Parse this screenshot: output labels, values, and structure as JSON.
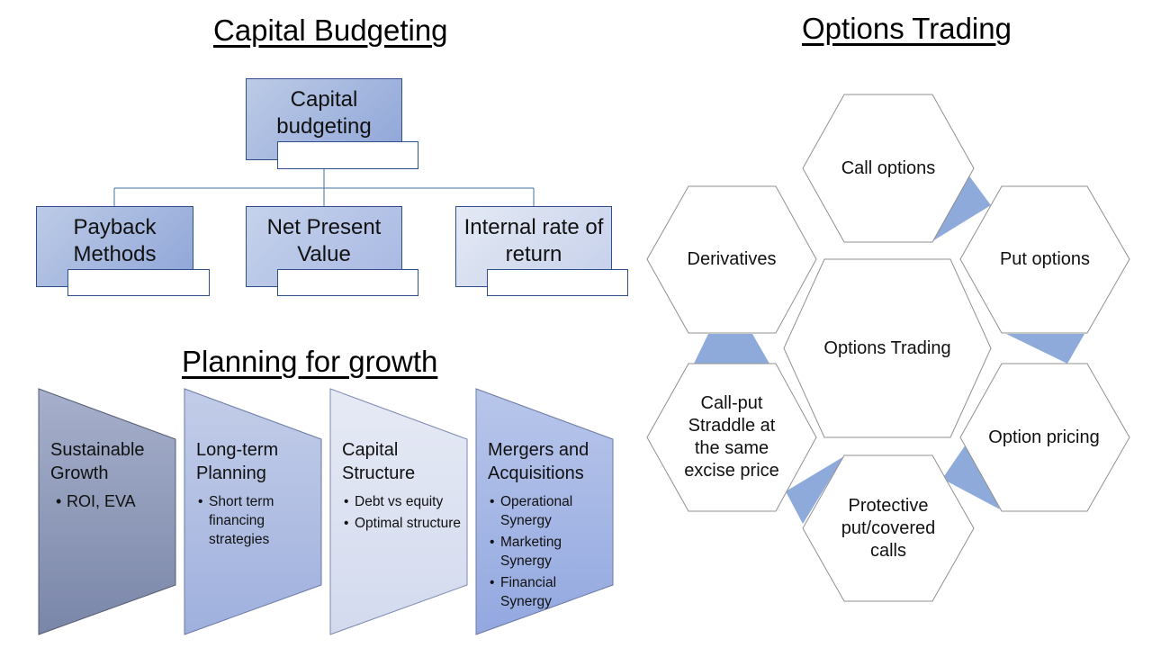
{
  "capital_budgeting": {
    "heading": "Capital Budgeting",
    "root": "Capital budgeting",
    "children": [
      "Payback Methods",
      "Net Present Value",
      "Internal rate of return"
    ]
  },
  "planning": {
    "heading": "Planning for growth",
    "stages": [
      {
        "title": "Sustainable Growth",
        "items": [
          "ROI, EVA"
        ]
      },
      {
        "title": "Long-term Planning",
        "items": [
          "Short term financing strategies"
        ]
      },
      {
        "title": "Capital Structure",
        "items": [
          "Debt vs equity",
          "Optimal structure"
        ]
      },
      {
        "title": "Mergers and Acquisitions",
        "items": [
          "Operational Synergy",
          "Marketing Synergy",
          "Financial Synergy"
        ]
      }
    ]
  },
  "options": {
    "heading": "Options Trading",
    "center": "Options Trading",
    "ring": [
      "Call options",
      "Put options",
      "Option pricing",
      "Protective put/covered calls",
      "Call-put Straddle at the same excise price",
      "Derivatives"
    ]
  },
  "colors": {
    "accent": "#8eaadb",
    "border": "#2f4f8a",
    "hex_border": "#909090"
  }
}
